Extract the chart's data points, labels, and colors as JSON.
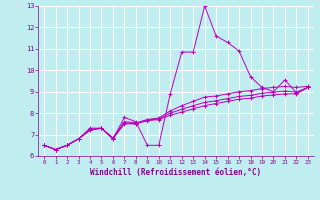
{
  "bg_color": "#c0eef0",
  "grid_color": "#ffffff",
  "line_color": "#bb00bb",
  "xlabel": "Windchill (Refroidissement éolien,°C)",
  "xlim": [
    -0.5,
    23.5
  ],
  "ylim": [
    6.0,
    13.0
  ],
  "yticks": [
    6,
    7,
    8,
    9,
    10,
    11,
    12,
    13
  ],
  "xticks": [
    0,
    1,
    2,
    3,
    4,
    5,
    6,
    7,
    8,
    9,
    10,
    11,
    12,
    13,
    14,
    15,
    16,
    17,
    18,
    19,
    20,
    21,
    22,
    23
  ],
  "series": [
    [
      6.5,
      6.3,
      6.5,
      6.8,
      7.3,
      7.3,
      6.8,
      7.8,
      7.6,
      6.5,
      6.5,
      8.9,
      10.85,
      10.85,
      13.0,
      11.6,
      11.3,
      10.9,
      9.7,
      9.2,
      9.0,
      9.55,
      8.95,
      9.2
    ],
    [
      6.5,
      6.3,
      6.5,
      6.8,
      7.25,
      7.3,
      6.85,
      7.6,
      7.55,
      7.7,
      7.78,
      8.1,
      8.35,
      8.55,
      8.75,
      8.8,
      8.9,
      9.0,
      9.05,
      9.15,
      9.2,
      9.25,
      9.2,
      9.25
    ],
    [
      6.5,
      6.3,
      6.5,
      6.8,
      7.2,
      7.3,
      6.8,
      7.55,
      7.5,
      7.68,
      7.73,
      8.0,
      8.18,
      8.35,
      8.5,
      8.58,
      8.68,
      8.78,
      8.83,
      8.93,
      8.98,
      9.03,
      8.98,
      9.2
    ],
    [
      6.5,
      6.3,
      6.5,
      6.8,
      7.2,
      7.3,
      6.8,
      7.5,
      7.5,
      7.65,
      7.7,
      7.9,
      8.05,
      8.2,
      8.35,
      8.45,
      8.55,
      8.65,
      8.7,
      8.8,
      8.85,
      8.9,
      8.9,
      9.2
    ]
  ]
}
